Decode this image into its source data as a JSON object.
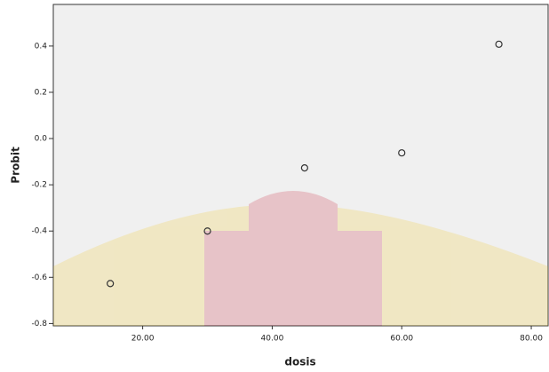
{
  "chart_data": {
    "type": "scatter",
    "x_label": "dosis",
    "y_label": "Probit",
    "x": [
      15,
      30,
      45,
      60,
      75
    ],
    "values": [
      -0.627,
      -0.4,
      -0.127,
      -0.062,
      0.408
    ],
    "color": "#333333",
    "xlim": [
      6.2,
      82.6
    ],
    "xticks": [
      {
        "value": 20,
        "label": "20.00"
      },
      {
        "value": 40,
        "label": "40.00"
      },
      {
        "value": 60,
        "label": "60.00"
      },
      {
        "value": 80,
        "label": "80.00"
      }
    ],
    "ylim": [
      -0.81,
      0.58
    ],
    "yticks": [
      -0.8,
      -0.6,
      -0.4,
      -0.2,
      {
        "value": 0,
        "label": "0.0"
      },
      0.2,
      0.4
    ],
    "grid": false
  }
}
